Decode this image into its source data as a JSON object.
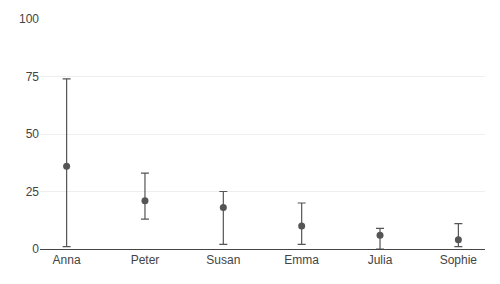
{
  "chart_data": {
    "type": "scatter",
    "categories": [
      "Anna",
      "Peter",
      "Susan",
      "Emma",
      "Julia",
      "Sophie"
    ],
    "values": [
      36,
      21,
      18,
      10,
      6,
      4
    ],
    "lower": [
      1,
      13,
      2,
      2,
      0,
      1
    ],
    "upper": [
      74,
      33,
      25,
      20,
      9,
      11
    ],
    "color": "#555555",
    "ylim": [
      0,
      100
    ],
    "yticks": [
      0,
      25,
      50,
      75,
      100
    ],
    "grid": true
  }
}
